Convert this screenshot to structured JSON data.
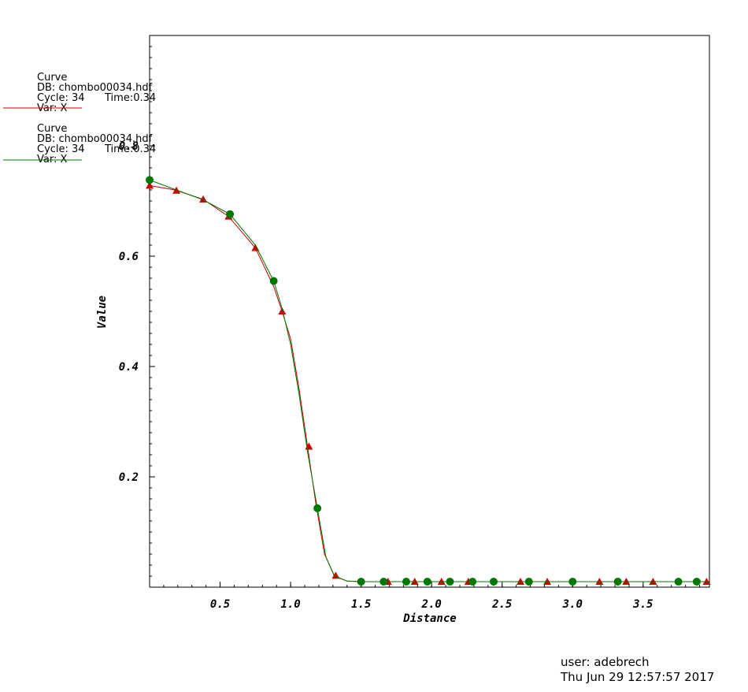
{
  "chart_data": {
    "type": "line",
    "xlabel": "Distance",
    "ylabel": "Value",
    "xlim": [
      0.0,
      3.97
    ],
    "ylim": [
      0.0,
      1.0
    ],
    "x_ticks": [
      0.5,
      1.0,
      1.5,
      2.0,
      2.5,
      3.0,
      3.5
    ],
    "x_tick_labels": [
      "0.5",
      "1.0",
      "1.5",
      "2.0",
      "2.5",
      "3.0",
      "3.5"
    ],
    "y_ticks": [
      0.2,
      0.4,
      0.6,
      0.8
    ],
    "y_tick_labels": [
      "0.2",
      "0.4",
      "0.6",
      "0.8"
    ],
    "grid": false,
    "legend_position": "top-left",
    "series": [
      {
        "label": "Curve",
        "db": "DB: chombo00034.hdf",
        "cycle": "Cycle: 34",
        "time": "Time:0.34",
        "var": "Var: X",
        "color": "#cc0000",
        "marker": "triangle",
        "x": [
          0.0,
          0.18,
          0.38,
          0.56,
          0.75,
          0.88,
          0.94,
          1.0,
          1.06,
          1.12,
          1.18,
          1.24,
          1.31,
          1.4,
          1.5,
          1.7,
          2.0,
          2.5,
          3.0,
          3.5,
          3.97
        ],
        "y": [
          0.728,
          0.72,
          0.703,
          0.672,
          0.615,
          0.545,
          0.5,
          0.45,
          0.36,
          0.255,
          0.15,
          0.06,
          0.021,
          0.011,
          0.01,
          0.01,
          0.01,
          0.01,
          0.01,
          0.01,
          0.01
        ],
        "marker_x": [
          0.0,
          0.19,
          0.38,
          0.56,
          0.75,
          0.94,
          1.13,
          1.32,
          1.69,
          1.88,
          2.07,
          2.26,
          2.63,
          2.82,
          3.19,
          3.38,
          3.57,
          3.95
        ],
        "marker_y": [
          0.728,
          0.719,
          0.703,
          0.672,
          0.615,
          0.5,
          0.255,
          0.021,
          0.01,
          0.01,
          0.01,
          0.01,
          0.01,
          0.01,
          0.01,
          0.01,
          0.01,
          0.01
        ]
      },
      {
        "label": "Curve",
        "db": "DB: chombo00034.hdf",
        "cycle": "Cycle: 34",
        "time": "Time:0.34",
        "var": "Var: X",
        "color": "#007700",
        "marker": "circle",
        "x": [
          0.0,
          0.19,
          0.38,
          0.57,
          0.75,
          0.88,
          0.94,
          1.0,
          1.06,
          1.12,
          1.19,
          1.25,
          1.31,
          1.4,
          1.5,
          1.7,
          2.0,
          2.5,
          3.0,
          3.5,
          3.97
        ],
        "y": [
          0.738,
          0.72,
          0.702,
          0.676,
          0.62,
          0.555,
          0.505,
          0.44,
          0.35,
          0.245,
          0.143,
          0.055,
          0.02,
          0.011,
          0.01,
          0.01,
          0.01,
          0.01,
          0.01,
          0.01,
          0.01
        ],
        "marker_x": [
          0.0,
          0.57,
          0.88,
          1.19,
          1.5,
          1.66,
          1.82,
          1.97,
          2.13,
          2.29,
          2.44,
          2.69,
          3.0,
          3.32,
          3.75,
          3.88
        ],
        "marker_y": [
          0.738,
          0.676,
          0.555,
          0.143,
          0.01,
          0.01,
          0.01,
          0.01,
          0.01,
          0.01,
          0.01,
          0.01,
          0.01,
          0.01,
          0.01,
          0.01
        ]
      }
    ]
  },
  "footer": {
    "user": "user: adebrech",
    "date": "Thu Jun 29 12:57:57 2017"
  }
}
